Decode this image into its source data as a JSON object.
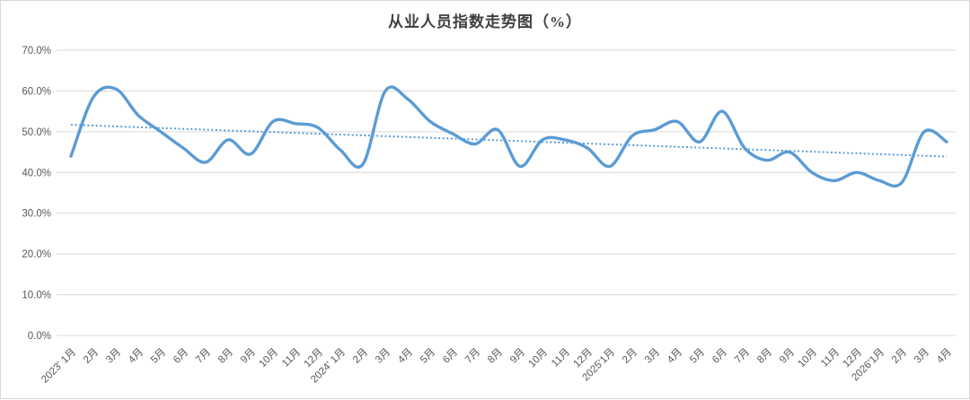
{
  "page": {
    "background_color": "#ffffff",
    "border_color": "#d9d9d9"
  },
  "chart_data": {
    "type": "line",
    "title": "从业人员指数走势图（%）",
    "xlabel": "",
    "ylabel": "",
    "legend": "none",
    "grid": true,
    "line_smooth": true,
    "ylim": [
      0,
      70
    ],
    "categories": [
      "2023' 1月",
      "2月",
      "3月",
      "4月",
      "5月",
      "6月",
      "7月",
      "8月",
      "9月",
      "10月",
      "11月",
      "12月",
      "2024' 1月",
      "2月",
      "3月",
      "4月",
      "5月",
      "6月",
      "7月",
      "8月",
      "9月",
      "10月",
      "11月",
      "12月",
      "2025'1月",
      "2月",
      "3月",
      "4月",
      "5月",
      "6月",
      "7月",
      "8月",
      "9月",
      "10月",
      "11月",
      "12月",
      "2026'1月",
      "2月",
      "3月",
      "4月"
    ],
    "values": [
      44,
      58.5,
      60.5,
      54,
      50,
      46,
      42.5,
      48,
      44.5,
      52.5,
      52,
      51,
      45.5,
      42,
      60,
      58,
      52.5,
      49.5,
      47,
      50.5,
      41.5,
      48,
      48,
      46,
      41.5,
      49,
      50.5,
      52.5,
      47.5,
      55,
      46,
      43,
      45,
      40,
      38,
      40,
      38,
      37.5,
      50,
      47.5
    ],
    "yticks": [
      {
        "value": 70,
        "label": "70.0%"
      },
      {
        "value": 60,
        "label": "60.0%"
      },
      {
        "value": 50,
        "label": "50.0%"
      },
      {
        "value": 40,
        "label": "40.0%"
      },
      {
        "value": 30,
        "label": "30.0%"
      },
      {
        "value": 20,
        "label": "20.0%"
      },
      {
        "value": 10,
        "label": "10.0%"
      },
      {
        "value": 0,
        "label": "0.0%"
      }
    ],
    "trendline": {
      "style": "dotted",
      "start_value": 51.7,
      "end_value": 43.9
    },
    "colors": {
      "line": "#5b9bd5",
      "trendline": "#5b9bd5",
      "gridline": "#d9d9d9",
      "axis_text": "#595959",
      "title_text": "#404040"
    }
  }
}
